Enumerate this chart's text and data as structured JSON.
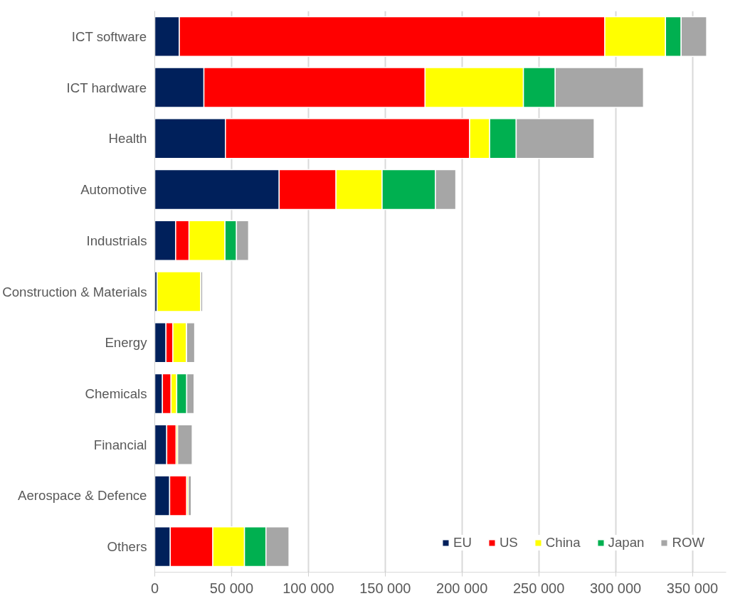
{
  "chart_data": {
    "type": "bar",
    "orientation": "horizontal",
    "stacked": true,
    "categories": [
      "ICT software",
      "ICT hardware",
      "Health",
      "Automotive",
      "Industrials",
      "Construction & Materials",
      "Energy",
      "Chemicals",
      "Financial",
      "Aerospace & Defence",
      "Others"
    ],
    "series": [
      {
        "name": "EU",
        "color": "#00205b",
        "values": [
          16000,
          32000,
          46000,
          81000,
          13600,
          1500,
          7300,
          5000,
          7800,
          9700,
          10100
        ]
      },
      {
        "name": "US",
        "color": "#ff0000",
        "values": [
          277000,
          144000,
          159000,
          37000,
          8700,
          null,
          4500,
          5600,
          6100,
          11100,
          27700
        ]
      },
      {
        "name": "China",
        "color": "#ffff00",
        "values": [
          39500,
          64000,
          13000,
          30000,
          23400,
          28500,
          8900,
          3700,
          1000,
          1000,
          20600
        ]
      },
      {
        "name": "Japan",
        "color": "#00b050",
        "values": [
          10200,
          20700,
          17300,
          34700,
          7500,
          null,
          null,
          6500,
          null,
          null,
          14000
        ]
      },
      {
        "name": "ROW",
        "color": "#a6a6a6",
        "values": [
          16600,
          57500,
          50800,
          13300,
          7900,
          1200,
          5300,
          4800,
          9500,
          2000,
          15000
        ]
      }
    ],
    "xlim": [
      0,
      372000
    ],
    "xticks": [
      {
        "value": 0,
        "label": "0"
      },
      {
        "value": 50000,
        "label": "50 000"
      },
      {
        "value": 100000,
        "label": "100 000"
      },
      {
        "value": 150000,
        "label": "150 000"
      },
      {
        "value": 200000,
        "label": "200 000"
      },
      {
        "value": 250000,
        "label": "250 000"
      },
      {
        "value": 300000,
        "label": "300 000"
      },
      {
        "value": 350000,
        "label": "350 000"
      }
    ],
    "grid": "x",
    "legend": "bottom right"
  }
}
